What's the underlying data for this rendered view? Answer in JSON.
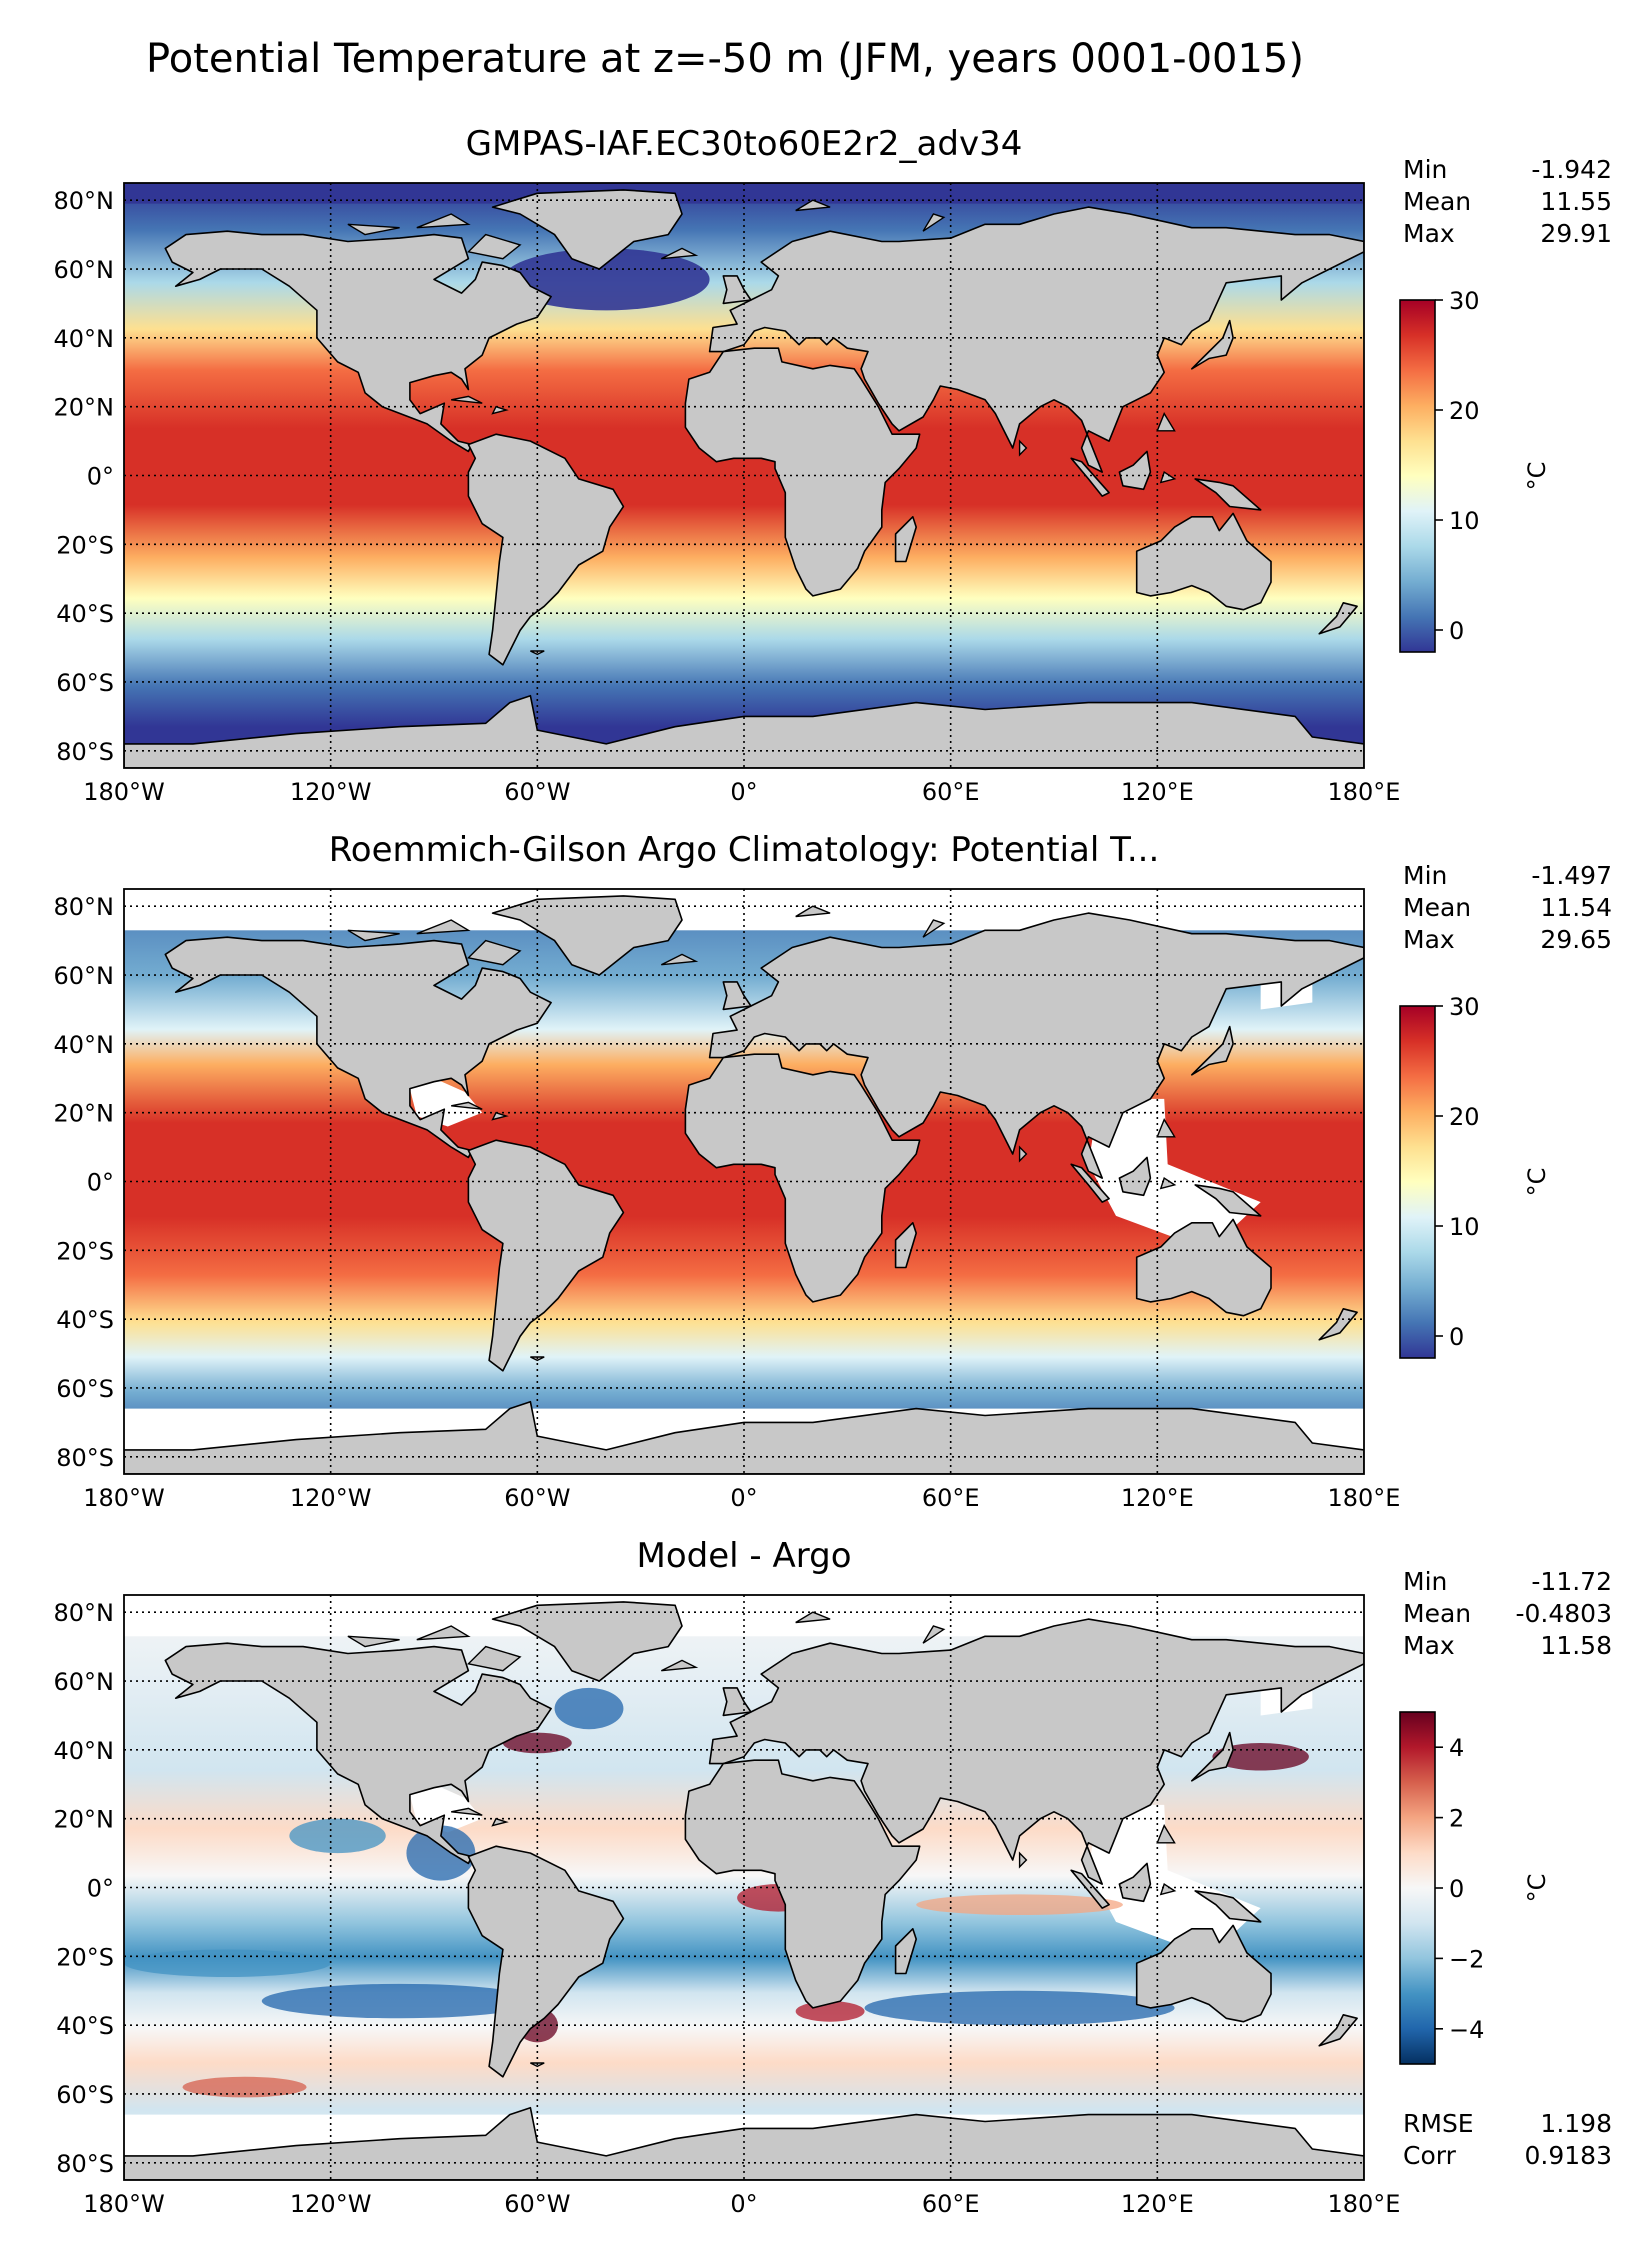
{
  "suptitle": "Potential Temperature at z=-50 m (JFM, years 0001-0015)",
  "colors": {
    "land": "#c8c8c8",
    "nodata": "#ffffff",
    "coast": "#000000",
    "rdylbu_r": [
      "#313695",
      "#4575b4",
      "#74add1",
      "#abd9e9",
      "#e0f3f8",
      "#ffffbf",
      "#fee090",
      "#fdae61",
      "#f46d43",
      "#d73027",
      "#a50026"
    ],
    "rdbu_r": [
      "#053061",
      "#2166ac",
      "#4393c3",
      "#92c5de",
      "#d1e5f0",
      "#f7f7f7",
      "#fddbc7",
      "#f4a582",
      "#d6604d",
      "#b2182b",
      "#67001f"
    ]
  },
  "chart_data": [
    {
      "type": "heatmap",
      "title": "GMPAS-IAF.EC30to60E2r2_adv34",
      "xticks": [
        "180°W",
        "120°W",
        "60°W",
        "0°",
        "60°E",
        "120°E",
        "180°E"
      ],
      "yticks": [
        "80°N",
        "60°N",
        "40°N",
        "20°N",
        "0°",
        "20°S",
        "40°S",
        "60°S",
        "80°S"
      ],
      "xlim": [
        -180,
        180
      ],
      "ylim": [
        -85,
        85
      ],
      "colorbar": {
        "label": "°C",
        "ticks": [
          "30",
          "20",
          "10",
          "0"
        ],
        "range": [
          -2,
          30
        ],
        "cmap": "rdylbu_r"
      },
      "stats": [
        {
          "label": "Min",
          "value": "-1.942"
        },
        {
          "label": "Mean",
          "value": "11.55"
        },
        {
          "label": "Max",
          "value": "29.91"
        }
      ]
    },
    {
      "type": "heatmap",
      "title": "Roemmich-Gilson Argo Climatology: Potential T...",
      "xticks": [
        "180°W",
        "120°W",
        "60°W",
        "0°",
        "60°E",
        "120°E",
        "180°E"
      ],
      "yticks": [
        "80°N",
        "60°N",
        "40°N",
        "20°N",
        "0°",
        "20°S",
        "40°S",
        "60°S",
        "80°S"
      ],
      "xlim": [
        -180,
        180
      ],
      "ylim": [
        -85,
        85
      ],
      "colorbar": {
        "label": "°C",
        "ticks": [
          "30",
          "20",
          "10",
          "0"
        ],
        "range": [
          -2,
          30
        ],
        "cmap": "rdylbu_r"
      },
      "stats": [
        {
          "label": "Min",
          "value": "-1.497"
        },
        {
          "label": "Mean",
          "value": "11.54"
        },
        {
          "label": "Max",
          "value": "29.65"
        }
      ]
    },
    {
      "type": "heatmap",
      "title": "Model - Argo",
      "xticks": [
        "180°W",
        "120°W",
        "60°W",
        "0°",
        "60°E",
        "120°E",
        "180°E"
      ],
      "yticks": [
        "80°N",
        "60°N",
        "40°N",
        "20°N",
        "0°",
        "20°S",
        "40°S",
        "60°S",
        "80°S"
      ],
      "xlim": [
        -180,
        180
      ],
      "ylim": [
        -85,
        85
      ],
      "colorbar": {
        "label": "°C",
        "ticks": [
          "4",
          "2",
          "0",
          "−2",
          "−4"
        ],
        "range": [
          -5,
          5
        ],
        "cmap": "rdbu_r"
      },
      "stats": [
        {
          "label": "Min",
          "value": "-11.72"
        },
        {
          "label": "Mean",
          "value": "-0.4803"
        },
        {
          "label": "Max",
          "value": "11.58"
        }
      ],
      "bottom_stats": [
        {
          "label": "RMSE",
          "value": "1.198"
        },
        {
          "label": "Corr",
          "value": "0.9183"
        }
      ]
    }
  ]
}
